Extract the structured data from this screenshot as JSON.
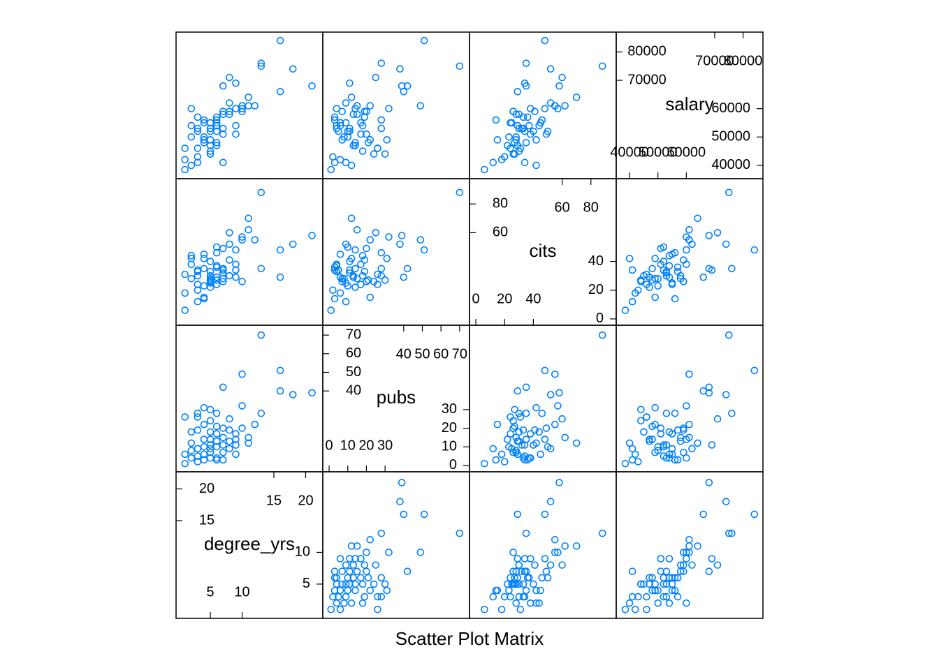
{
  "chart_data": {
    "type": "splom",
    "title": "Scatter Plot Matrix",
    "color": "#0080ff",
    "variables": [
      {
        "name": "degree_yrs",
        "lim": [
          -0.4,
          22.7
        ],
        "ticks": [
          5,
          10,
          15,
          20
        ],
        "values": [
          21,
          18,
          16,
          16,
          13,
          13,
          10,
          10,
          7,
          11,
          11,
          9,
          9,
          9,
          8,
          8,
          8,
          7,
          7,
          7,
          7,
          6,
          6,
          6,
          6,
          6,
          5,
          5,
          5,
          5,
          5,
          5,
          4,
          4,
          4,
          3,
          3,
          3,
          3,
          3,
          2,
          2,
          1,
          1,
          1,
          4,
          6,
          2,
          4,
          5,
          3,
          8,
          2,
          7,
          5,
          9,
          6,
          4,
          10,
          12
        ]
      },
      {
        "name": "pubs",
        "lim": [
          -3.4,
          75.3
        ],
        "ticks": [
          0,
          10,
          20,
          30,
          40,
          50,
          60,
          70
        ],
        "values": [
          39,
          38,
          51,
          40,
          70,
          28,
          49,
          32,
          42,
          12,
          15,
          11,
          14,
          17,
          9,
          13,
          19,
          7,
          11,
          15,
          20,
          4,
          10,
          13,
          17,
          21,
          4,
          7,
          11,
          14,
          18,
          30,
          6,
          10,
          14,
          2,
          5,
          9,
          26,
          28,
          8,
          12,
          1,
          6,
          26,
          3,
          3,
          18,
          22,
          24,
          19,
          25,
          4,
          3,
          9,
          6,
          28,
          31,
          20,
          22
        ]
      },
      {
        "name": "cits",
        "lim": [
          -4.4,
          97.6
        ],
        "ticks": [
          0,
          20,
          40,
          60,
          80
        ],
        "values": [
          58,
          52,
          48,
          29,
          88,
          35,
          55,
          57,
          35,
          70,
          62,
          34,
          48,
          38,
          52,
          30,
          41,
          26,
          32,
          28,
          49,
          37,
          50,
          29,
          24,
          27,
          33,
          28,
          40,
          22,
          30,
          27,
          45,
          23,
          35,
          20,
          34,
          12,
          24,
          30,
          28,
          42,
          6,
          18,
          31,
          14,
          36,
          44,
          15,
          26,
          33,
          60,
          38,
          34,
          25,
          29,
          46,
          42,
          26,
          55
        ]
      },
      {
        "name": "salary",
        "lim": [
          35300,
          87000
        ],
        "ticks": [
          40000,
          50000,
          60000,
          70000,
          80000
        ],
        "values": [
          68000,
          74000,
          84000,
          66000,
          75000,
          76000,
          61000,
          60000,
          68000,
          64000,
          61000,
          69000,
          60000,
          51000,
          62000,
          58000,
          59000,
          59000,
          53000,
          58000,
          51000,
          54000,
          52000,
          47000,
          55000,
          48000,
          53000,
          49000,
          52000,
          47000,
          45000,
          44000,
          55000,
          50000,
          48000,
          43000,
          52000,
          41000,
          46000,
          53000,
          50000,
          40000,
          38500,
          42000,
          46000,
          56000,
          57000,
          54000,
          49000,
          44000,
          57000,
          71000,
          60000,
          41000,
          55000,
          54000,
          56000,
          49000,
          59000,
          61000
        ]
      }
    ]
  }
}
